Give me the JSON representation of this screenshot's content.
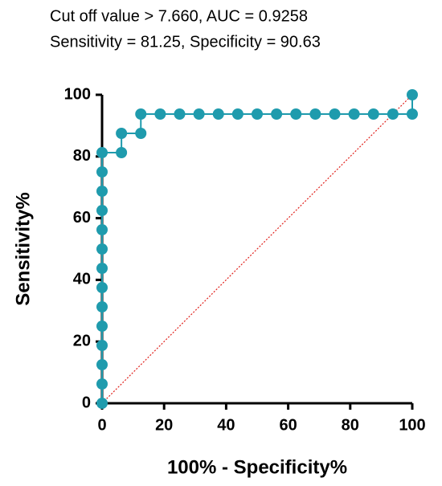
{
  "chart_data": {
    "type": "line",
    "title": "Cut off value > 7.660, AUC = 0.9258",
    "subtitle": "Sensitivity = 81.25, Specificity = 90.63",
    "x_label": "100% - Specificity%",
    "y_label": "Sensitivity%",
    "xlim": [
      0,
      100
    ],
    "ylim": [
      0,
      100
    ],
    "xticks": [
      0,
      20,
      40,
      60,
      80,
      100
    ],
    "yticks": [
      0,
      20,
      40,
      60,
      80,
      100
    ],
    "reference_line_color": "#e0201b",
    "series": [
      {
        "color": "#1f9bad",
        "x": [
          0,
          0,
          0,
          0,
          0,
          0,
          0,
          0,
          0,
          0,
          0,
          0,
          0,
          0,
          6.25,
          6.25,
          12.5,
          12.5,
          18.75,
          25,
          31.25,
          37.5,
          43.75,
          50,
          56.25,
          62.5,
          68.75,
          75,
          81.25,
          87.5,
          93.75,
          100,
          100
        ],
        "values": [
          0,
          6.25,
          12.5,
          18.75,
          25,
          31.25,
          37.5,
          43.75,
          50,
          56.25,
          62.5,
          68.75,
          75,
          81.25,
          81.25,
          87.5,
          87.5,
          93.75,
          93.75,
          93.75,
          93.75,
          93.75,
          93.75,
          93.75,
          93.75,
          93.75,
          93.75,
          93.75,
          93.75,
          93.75,
          93.75,
          93.75,
          100
        ]
      }
    ]
  }
}
